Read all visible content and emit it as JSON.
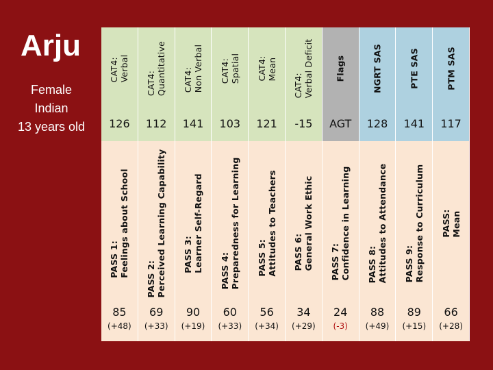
{
  "title": "Arju",
  "subtitle": "Female\nIndian\n13 years old",
  "colors": {
    "background": "#8b1113",
    "cat4": "#d6e4bd",
    "flags": "#b2b2b2",
    "sas": "#aed1e0",
    "pass": "#fbe6d3",
    "negative": "#b01010"
  },
  "top_columns": [
    {
      "label": "CAT4:\nVerbal",
      "value": "126",
      "group": "cat4"
    },
    {
      "label": "CAT4:\nQuantitative",
      "value": "112",
      "group": "cat4"
    },
    {
      "label": "CAT4:\nNon Verbal",
      "value": "141",
      "group": "cat4"
    },
    {
      "label": "CAT4:\nSpatial",
      "value": "103",
      "group": "cat4"
    },
    {
      "label": "CAT4:\nMean",
      "value": "121",
      "group": "cat4"
    },
    {
      "label": "CAT4:\nVerbal Deficit",
      "value": "-15",
      "group": "cat4"
    },
    {
      "label": "Flags",
      "value": "AGT",
      "group": "flags"
    },
    {
      "label": "NGRT SAS",
      "value": "128",
      "group": "sas"
    },
    {
      "label": "PTE SAS",
      "value": "141",
      "group": "sas"
    },
    {
      "label": "PTM SAS",
      "value": "117",
      "group": "sas"
    }
  ],
  "pass_columns": [
    {
      "label": "PASS 1:\nFeelings about School",
      "score": "85",
      "change": "(+48)"
    },
    {
      "label": "PASS 2:\nPerceived Learning Capability",
      "score": "69",
      "change": "(+33)"
    },
    {
      "label": "PASS 3:\nLearner Self-Regard",
      "score": "90",
      "change": "(+19)"
    },
    {
      "label": "PASS 4:\nPreparedness for Learning",
      "score": "60",
      "change": "(+33)"
    },
    {
      "label": "PASS 5:\nAttitudes to Teachers",
      "score": "56",
      "change": "(+34)"
    },
    {
      "label": "PASS 6:\nGeneral Work Ethic",
      "score": "34",
      "change": "(+29)"
    },
    {
      "label": "PASS 7:\nConfidence in Learning",
      "score": "24",
      "change": "(-3)"
    },
    {
      "label": "PASS 8:\nAttitudes to Attendance",
      "score": "88",
      "change": "(+49)"
    },
    {
      "label": "PASS 9:\nResponse to Curriculum",
      "score": "89",
      "change": "(+15)"
    },
    {
      "label": "PASS:\nMean",
      "score": "66",
      "change": "(+28)"
    }
  ]
}
